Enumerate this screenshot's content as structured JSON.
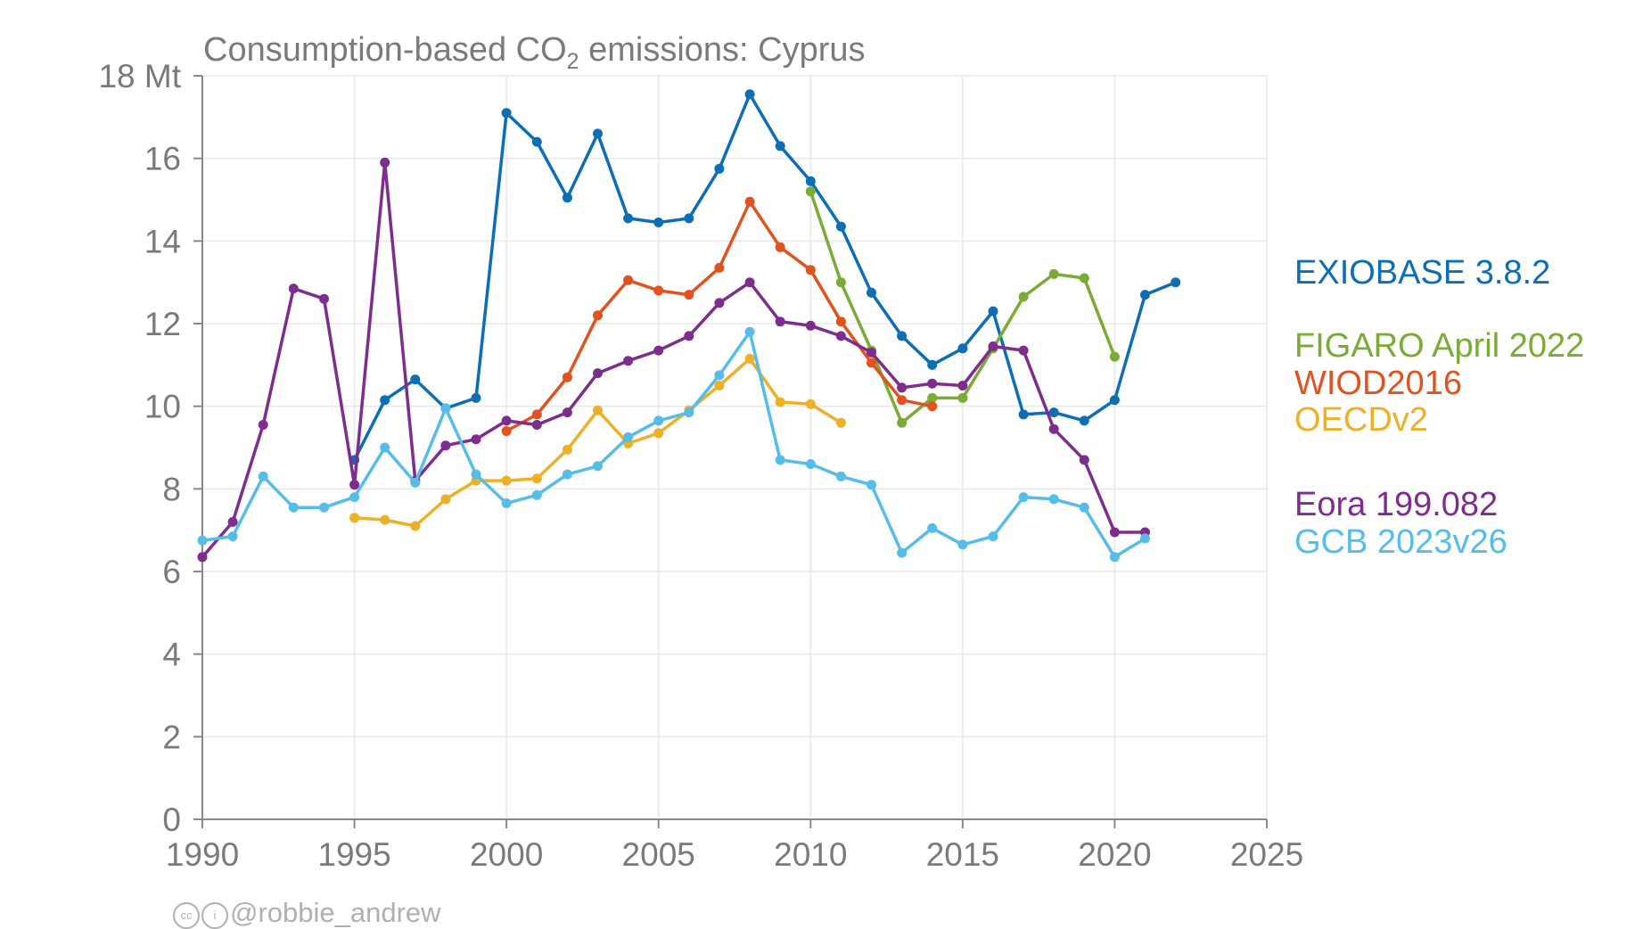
{
  "chart_data": {
    "type": "line",
    "title": "Consumption-based CO₂ emissions: Cyprus",
    "title_parts": {
      "prefix": "Consumption-based CO",
      "subscript": "2",
      "suffix": " emissions: Cyprus"
    },
    "xlim": [
      1990,
      2025
    ],
    "ylim": [
      0,
      18
    ],
    "xticks": [
      1990,
      1995,
      2000,
      2005,
      2010,
      2015,
      2020,
      2025
    ],
    "yticks": [
      0,
      2,
      4,
      6,
      8,
      10,
      12,
      14,
      16,
      18
    ],
    "ytick_labels": [
      "0",
      "2",
      "4",
      "6",
      "8",
      "10",
      "12",
      "14",
      "16",
      "18 Mt"
    ],
    "grid": true,
    "legend_position": "right",
    "series": [
      {
        "name": "EXIOBASE 3.8.2",
        "color": "#0C6FB5",
        "points": [
          [
            1995,
            8.7
          ],
          [
            1996,
            10.15
          ],
          [
            1997,
            10.65
          ],
          [
            1998,
            9.95
          ],
          [
            1999,
            10.2
          ],
          [
            2000,
            17.1
          ],
          [
            2001,
            16.4
          ],
          [
            2002,
            15.05
          ],
          [
            2003,
            16.6
          ],
          [
            2004,
            14.55
          ],
          [
            2005,
            14.45
          ],
          [
            2006,
            14.55
          ],
          [
            2007,
            15.75
          ],
          [
            2008,
            17.55
          ],
          [
            2009,
            16.3
          ],
          [
            2010,
            15.45
          ],
          [
            2011,
            14.35
          ],
          [
            2012,
            12.75
          ],
          [
            2013,
            11.7
          ],
          [
            2014,
            11.0
          ],
          [
            2015,
            11.4
          ],
          [
            2016,
            12.3
          ],
          [
            2017,
            9.8
          ],
          [
            2018,
            9.85
          ],
          [
            2019,
            9.65
          ],
          [
            2020,
            10.15
          ],
          [
            2021,
            12.7
          ],
          [
            2022,
            13.0
          ]
        ]
      },
      {
        "name": "FIGARO April 2022",
        "color": "#7AAB35",
        "points": [
          [
            2010,
            15.2
          ],
          [
            2011,
            13.0
          ],
          [
            2012,
            11.35
          ],
          [
            2013,
            9.6
          ],
          [
            2014,
            10.2
          ],
          [
            2015,
            10.2
          ],
          [
            2016,
            11.4
          ],
          [
            2017,
            12.65
          ],
          [
            2018,
            13.2
          ],
          [
            2019,
            13.1
          ],
          [
            2020,
            11.2
          ]
        ]
      },
      {
        "name": "WIOD2016",
        "color": "#E0531F",
        "points": [
          [
            2000,
            9.4
          ],
          [
            2001,
            9.8
          ],
          [
            2002,
            10.7
          ],
          [
            2003,
            12.2
          ],
          [
            2004,
            13.05
          ],
          [
            2005,
            12.8
          ],
          [
            2006,
            12.7
          ],
          [
            2007,
            13.35
          ],
          [
            2008,
            14.95
          ],
          [
            2009,
            13.85
          ],
          [
            2010,
            13.3
          ],
          [
            2011,
            12.05
          ],
          [
            2012,
            11.05
          ],
          [
            2013,
            10.15
          ],
          [
            2014,
            10.0
          ]
        ]
      },
      {
        "name": "OECDv2",
        "color": "#EDB026",
        "points": [
          [
            1995,
            7.3
          ],
          [
            1996,
            7.25
          ],
          [
            1997,
            7.1
          ],
          [
            1998,
            7.75
          ],
          [
            1999,
            8.2
          ],
          [
            2000,
            8.2
          ],
          [
            2001,
            8.25
          ],
          [
            2002,
            8.95
          ],
          [
            2003,
            9.9
          ],
          [
            2004,
            9.1
          ],
          [
            2005,
            9.35
          ],
          [
            2006,
            9.9
          ],
          [
            2007,
            10.5
          ],
          [
            2008,
            11.15
          ],
          [
            2009,
            10.1
          ],
          [
            2010,
            10.05
          ],
          [
            2011,
            9.6
          ]
        ]
      },
      {
        "name": "Eora 199.082",
        "color": "#7E2D8E",
        "points": [
          [
            1990,
            6.35
          ],
          [
            1991,
            7.2
          ],
          [
            1992,
            9.55
          ],
          [
            1993,
            12.85
          ],
          [
            1994,
            12.6
          ],
          [
            1995,
            8.1
          ],
          [
            1996,
            15.9
          ],
          [
            1997,
            8.2
          ],
          [
            1998,
            9.05
          ],
          [
            1999,
            9.2
          ],
          [
            2000,
            9.65
          ],
          [
            2001,
            9.55
          ],
          [
            2002,
            9.85
          ],
          [
            2003,
            10.8
          ],
          [
            2004,
            11.1
          ],
          [
            2005,
            11.35
          ],
          [
            2006,
            11.7
          ],
          [
            2007,
            12.5
          ],
          [
            2008,
            13.0
          ],
          [
            2009,
            12.05
          ],
          [
            2010,
            11.95
          ],
          [
            2011,
            11.7
          ],
          [
            2012,
            11.3
          ],
          [
            2013,
            10.45
          ],
          [
            2014,
            10.55
          ],
          [
            2015,
            10.5
          ],
          [
            2016,
            11.45
          ],
          [
            2017,
            11.35
          ],
          [
            2018,
            9.45
          ],
          [
            2019,
            8.7
          ],
          [
            2020,
            6.95
          ],
          [
            2021,
            6.95
          ]
        ]
      },
      {
        "name": "GCB 2023v26",
        "color": "#56BDE8",
        "points": [
          [
            1990,
            6.75
          ],
          [
            1991,
            6.85
          ],
          [
            1992,
            8.3
          ],
          [
            1993,
            7.55
          ],
          [
            1994,
            7.55
          ],
          [
            1995,
            7.8
          ],
          [
            1996,
            9.0
          ],
          [
            1997,
            8.15
          ],
          [
            1998,
            9.95
          ],
          [
            1999,
            8.35
          ],
          [
            2000,
            7.65
          ],
          [
            2001,
            7.85
          ],
          [
            2002,
            8.35
          ],
          [
            2003,
            8.55
          ],
          [
            2004,
            9.25
          ],
          [
            2005,
            9.65
          ],
          [
            2006,
            9.85
          ],
          [
            2007,
            10.75
          ],
          [
            2008,
            11.8
          ],
          [
            2009,
            8.7
          ],
          [
            2010,
            8.6
          ],
          [
            2011,
            8.3
          ],
          [
            2012,
            8.1
          ],
          [
            2013,
            6.45
          ],
          [
            2014,
            7.05
          ],
          [
            2015,
            6.65
          ],
          [
            2016,
            6.85
          ],
          [
            2017,
            7.8
          ],
          [
            2018,
            7.75
          ],
          [
            2019,
            7.55
          ],
          [
            2020,
            6.35
          ],
          [
            2021,
            6.8
          ]
        ]
      }
    ]
  },
  "credit": {
    "cc_icon": "cc",
    "by_icon": "i",
    "handle": "@robbie_andrew"
  }
}
